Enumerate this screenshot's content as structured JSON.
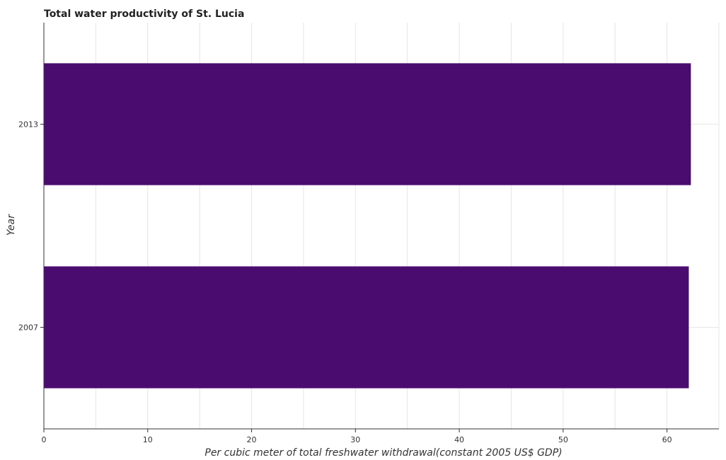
{
  "chart_data": {
    "type": "bar",
    "orientation": "horizontal",
    "title": "Total water productivity of St. Lucia",
    "xlabel": "Per cubic meter of total freshwater withdrawal(constant 2005 US$ GDP)",
    "ylabel": "Year",
    "categories": [
      "2007",
      "2013"
    ],
    "values": [
      62.1,
      62.3
    ],
    "xlim": [
      0,
      65
    ],
    "xticks": [
      0,
      10,
      20,
      30,
      40,
      50,
      60
    ],
    "grid": true,
    "bar_color": "#4b0c6f"
  }
}
